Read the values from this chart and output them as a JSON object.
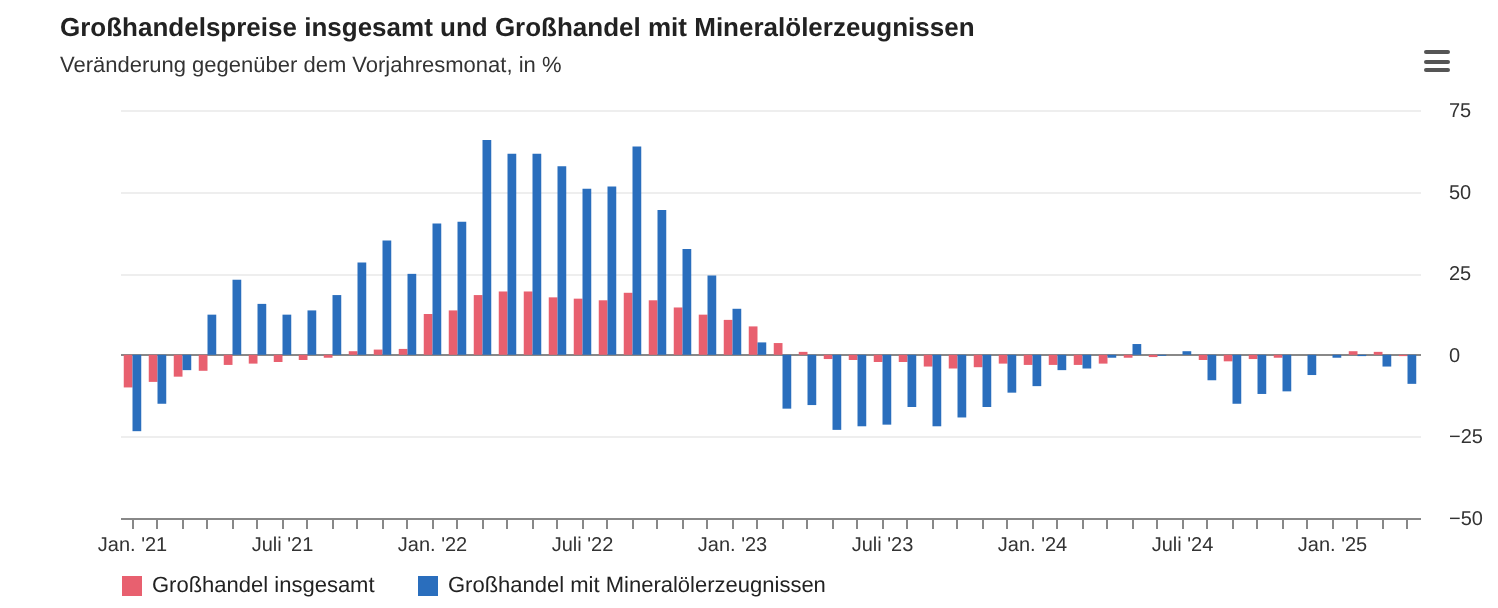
{
  "chart_data": {
    "type": "bar",
    "title": "Großhandelspreise insgesamt und Großhandel mit Mineralölerzeugnissen",
    "subtitle": "Veränderung gegenüber dem Vorjahresmonat, in %",
    "categories": [
      "Jan. '21",
      null,
      null,
      null,
      null,
      null,
      "Juli '21",
      null,
      null,
      null,
      null,
      null,
      "Jan. '22",
      null,
      null,
      null,
      null,
      null,
      "Juli '22",
      null,
      null,
      null,
      null,
      null,
      "Jan. '23",
      null,
      null,
      null,
      null,
      null,
      "Juli '23",
      null,
      null,
      null,
      null,
      null,
      "Jan. '24",
      null,
      null,
      null,
      null,
      null,
      "Juli '24",
      null,
      null,
      null,
      null,
      null,
      "Jan. '25",
      null,
      null,
      null
    ],
    "series": [
      {
        "name": "Großhandel insgesamt",
        "color": "#e8606f",
        "values": [
          -10,
          -8.3,
          -6.7,
          -4.9,
          -3.1,
          -2.7,
          -2.2,
          -1.6,
          -0.9,
          1.1,
          1.6,
          1.8,
          12.5,
          13.6,
          18.3,
          19.4,
          19.4,
          17.6,
          17.2,
          16.7,
          19,
          16.7,
          14.5,
          12.3,
          10.7,
          8.7,
          3.6,
          0.9,
          -1.3,
          -1.6,
          -2.2,
          -2.2,
          -3.6,
          -4.2,
          -3.8,
          -2.7,
          -3.1,
          -3.1,
          -3.1,
          -2.7,
          -0.9,
          -0.7,
          null,
          -1.6,
          -2,
          -1.3,
          -0.9,
          null,
          null,
          1.1,
          0.9,
          -0.4
        ]
      },
      {
        "name": "Großhandel mit Mineralölerzeugnissen",
        "color": "#2a6ebd",
        "values": [
          -23.4,
          -15,
          -4.7,
          12.3,
          23,
          15.6,
          12.3,
          13.6,
          18.3,
          28.3,
          35,
          24.8,
          40.2,
          40.8,
          65.8,
          61.6,
          61.6,
          57.8,
          50.9,
          51.6,
          63.8,
          44.4,
          32.4,
          24.3,
          14.1,
          3.8,
          -16.5,
          -15.4,
          -23,
          -21.9,
          -21.4,
          -16,
          -21.9,
          -19.2,
          -16,
          -11.6,
          -9.6,
          -4.7,
          -4.2,
          -0.9,
          3.3,
          -0.3,
          1.1,
          -7.8,
          -15,
          -12,
          -11.2,
          -6.2,
          -0.9,
          -0.4,
          -3.6,
          -8.9
        ]
      }
    ],
    "ylim": [
      -50,
      75
    ],
    "yticks": [
      -50,
      -25,
      0,
      25,
      50,
      75
    ],
    "grid": "y",
    "legend": "bottom left"
  }
}
